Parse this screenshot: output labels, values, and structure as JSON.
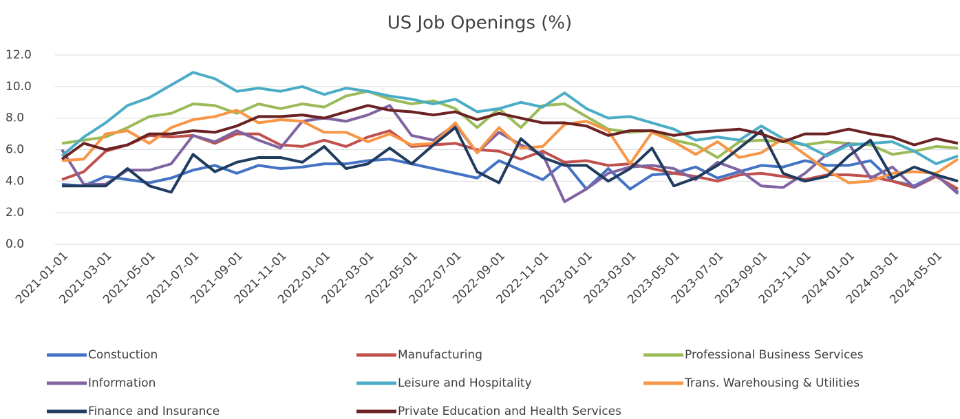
{
  "chart_data": {
    "type": "line",
    "title": "US Job Openings (%)",
    "categories": [
      "2021-01-01",
      null,
      "2021-03-01",
      null,
      "2021-05-01",
      null,
      "2021-07-01",
      null,
      "2021-09-01",
      null,
      "2021-11-01",
      null,
      "2022-01-01",
      null,
      "2022-03-01",
      null,
      "2022-05-01",
      null,
      "2022-07-01",
      null,
      "2022-09-01",
      null,
      "2022-11-01",
      null,
      "2023-01-01",
      null,
      "2023-03-01",
      null,
      "2023-05-01",
      null,
      "2023-07-01",
      null,
      "2023-09-01",
      null,
      "2023-11-01",
      null,
      "2024-01-01",
      null,
      "2024-03-01",
      null,
      "2024-05-01",
      null
    ],
    "series": [
      {
        "name": "Constuction",
        "color": "#4472c4",
        "values": [
          3.8,
          3.7,
          4.3,
          4.1,
          3.9,
          4.2,
          4.7,
          5.0,
          4.5,
          5.0,
          4.8,
          4.9,
          5.1,
          5.1,
          5.3,
          5.4,
          5.1,
          4.8,
          4.5,
          4.2,
          5.3,
          4.7,
          4.1,
          5.2,
          3.5,
          4.8,
          3.5,
          4.4,
          4.5,
          4.9,
          4.2,
          4.6,
          5.0,
          4.9,
          5.3,
          5.0,
          5.0,
          5.3,
          4.0,
          3.7,
          4.4,
          3.3
        ]
      },
      {
        "name": "Manufacturing",
        "color": "#c0504d",
        "values": [
          4.1,
          4.6,
          5.9,
          6.3,
          6.9,
          6.8,
          6.9,
          6.4,
          7.0,
          7.0,
          6.3,
          6.2,
          6.6,
          6.2,
          6.8,
          7.2,
          6.2,
          6.3,
          6.4,
          6.0,
          5.9,
          5.4,
          5.9,
          5.2,
          5.3,
          5.0,
          5.1,
          4.8,
          4.5,
          4.3,
          4.0,
          4.4,
          4.5,
          4.3,
          4.1,
          4.4,
          4.4,
          4.3,
          4.0,
          3.6,
          4.3,
          3.5
        ]
      },
      {
        "name": "Professional Business Services",
        "color": "#9bbb59",
        "values": [
          6.4,
          6.6,
          6.8,
          7.4,
          8.1,
          8.3,
          8.9,
          8.8,
          8.3,
          8.9,
          8.6,
          8.9,
          8.7,
          9.4,
          9.7,
          9.2,
          8.9,
          9.1,
          8.6,
          7.4,
          8.6,
          7.4,
          8.8,
          8.9,
          8.1,
          7.3,
          7.1,
          7.2,
          6.6,
          6.3,
          5.5,
          6.5,
          6.6,
          6.5,
          6.3,
          6.5,
          6.4,
          6.3,
          5.7,
          5.9,
          6.2,
          6.1
        ]
      },
      {
        "name": "Information",
        "color": "#8064a2",
        "values": [
          6.0,
          3.8,
          3.8,
          4.7,
          4.7,
          5.1,
          6.9,
          6.5,
          7.2,
          6.6,
          6.1,
          7.8,
          8.0,
          7.8,
          8.2,
          8.8,
          6.9,
          6.6,
          7.6,
          5.8,
          7.1,
          6.3,
          5.7,
          2.7,
          3.5,
          4.5,
          4.9,
          5.0,
          4.8,
          4.1,
          5.2,
          4.7,
          3.7,
          3.6,
          4.5,
          5.7,
          6.4,
          4.2,
          4.9,
          3.6,
          4.4,
          3.2
        ]
      },
      {
        "name": "Leisure and Hospitality",
        "color": "#4bacc6",
        "values": [
          5.6,
          6.8,
          7.7,
          8.8,
          9.3,
          10.1,
          10.9,
          10.5,
          9.7,
          9.9,
          9.7,
          10.0,
          9.5,
          9.9,
          9.7,
          9.4,
          9.2,
          8.9,
          9.2,
          8.4,
          8.6,
          9.0,
          8.7,
          9.6,
          8.6,
          8.0,
          8.1,
          7.7,
          7.3,
          6.6,
          6.8,
          6.6,
          7.5,
          6.7,
          6.3,
          5.6,
          6.3,
          6.4,
          6.5,
          5.9,
          5.1,
          5.6
        ]
      },
      {
        "name": "Trans. Warehousing & Utilities",
        "color": "#f79646",
        "values": [
          5.3,
          5.4,
          7.0,
          7.2,
          6.4,
          7.4,
          7.9,
          8.1,
          8.5,
          7.7,
          7.9,
          7.8,
          7.1,
          7.1,
          6.5,
          7.0,
          6.3,
          6.4,
          7.7,
          5.8,
          7.4,
          6.1,
          6.2,
          7.6,
          7.8,
          7.2,
          5.1,
          7.1,
          6.5,
          5.7,
          6.5,
          5.5,
          5.8,
          6.7,
          5.7,
          4.7,
          3.9,
          4.0,
          4.5,
          4.6,
          4.5,
          5.4
        ]
      },
      {
        "name": "Finance and Insurance",
        "color": "#1f3b5e",
        "values": [
          3.7,
          3.7,
          3.7,
          4.8,
          3.7,
          3.3,
          5.7,
          4.6,
          5.2,
          5.5,
          5.5,
          5.2,
          6.2,
          4.8,
          5.1,
          6.1,
          5.1,
          6.3,
          7.4,
          4.6,
          3.9,
          6.7,
          5.5,
          5.0,
          5.0,
          4.0,
          4.8,
          6.1,
          3.7,
          4.2,
          5.0,
          6.1,
          7.2,
          4.5,
          4.0,
          4.3,
          5.6,
          6.6,
          4.2,
          4.9,
          4.4,
          4.0
        ]
      },
      {
        "name": "Private Education and Health Services",
        "color": "#6b2222",
        "values": [
          5.4,
          6.4,
          6.0,
          6.3,
          7.0,
          7.0,
          7.2,
          7.1,
          7.5,
          8.1,
          8.1,
          8.2,
          8.0,
          8.4,
          8.8,
          8.5,
          8.4,
          8.2,
          8.4,
          7.9,
          8.3,
          8.0,
          7.7,
          7.7,
          7.5,
          6.9,
          7.2,
          7.2,
          6.9,
          7.1,
          7.2,
          7.3,
          7.0,
          6.5,
          7.0,
          7.0,
          7.3,
          7.0,
          6.8,
          6.3,
          6.7,
          6.4
        ]
      }
    ],
    "ylim": [
      0,
      12
    ],
    "yticks": [
      {
        "value": 0,
        "label": "0.0"
      },
      {
        "value": 2,
        "label": "2.0"
      },
      {
        "value": 4,
        "label": "4.0"
      },
      {
        "value": 6,
        "label": "6.0"
      },
      {
        "value": 8,
        "label": "8.0"
      },
      {
        "value": 10,
        "label": "10.0"
      },
      {
        "value": 12,
        "label": "12.0"
      }
    ],
    "grid": true,
    "legend": "bottom"
  }
}
